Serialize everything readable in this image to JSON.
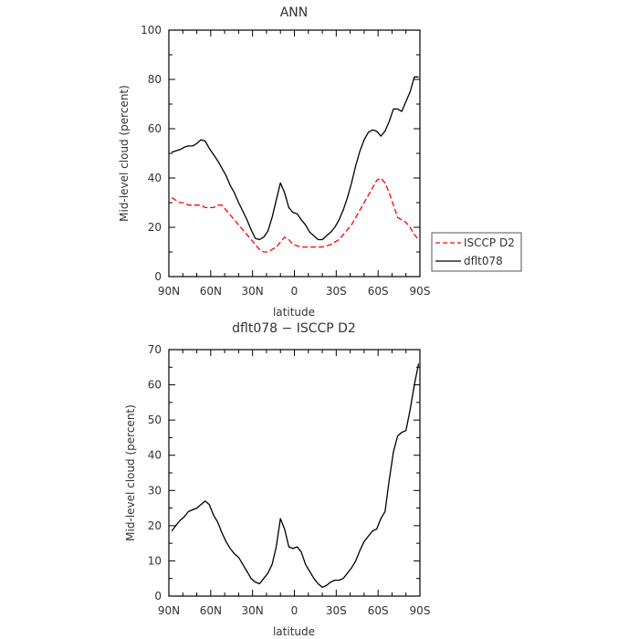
{
  "chart_data": [
    {
      "type": "line",
      "title": "ANN",
      "xlabel": "latitude",
      "ylabel": "Mid-level cloud (percent)",
      "xlim": [
        90,
        -90
      ],
      "ylim": [
        0,
        100
      ],
      "xticks": [
        90,
        60,
        30,
        0,
        -30,
        -60,
        -90
      ],
      "xtick_labels": [
        "90N",
        "60N",
        "30N",
        "0",
        "30S",
        "60S",
        "90S"
      ],
      "yticks": [
        0,
        20,
        40,
        60,
        80,
        100
      ],
      "ytick_labels": [
        "0",
        "20",
        "40",
        "60",
        "80",
        "100"
      ],
      "grid": false,
      "legend": {
        "placement": "right-outside-bottom"
      },
      "series": [
        {
          "name": "ISCCP D2",
          "color": "#ff0000",
          "dash": "dashed",
          "x": [
            88,
            85,
            82,
            79,
            76,
            73,
            70,
            67,
            64,
            61,
            58,
            55,
            52,
            49,
            46,
            43,
            40,
            37,
            34,
            31,
            28,
            25,
            22,
            19,
            16,
            13,
            10,
            7,
            4,
            1,
            -2,
            -5,
            -8,
            -11,
            -14,
            -17,
            -20,
            -23,
            -26,
            -29,
            -32,
            -35,
            -38,
            -41,
            -44,
            -47,
            -50,
            -53,
            -56,
            -59,
            -62,
            -65,
            -68,
            -71,
            -74,
            -77,
            -80,
            -83,
            -86,
            -89
          ],
          "y": [
            32,
            31,
            30,
            30,
            29,
            29,
            29,
            29,
            28,
            28,
            28,
            29,
            29,
            27,
            25,
            23,
            21,
            19,
            17,
            15,
            13,
            11,
            10,
            10,
            11,
            12,
            14,
            16,
            15,
            13,
            12.5,
            12,
            12,
            12,
            12,
            12,
            12,
            12.5,
            13,
            14,
            15,
            17,
            19,
            21,
            24,
            27,
            30,
            33,
            36,
            39,
            40,
            38,
            34,
            29,
            24,
            23,
            22,
            20,
            17,
            15
          ]
        },
        {
          "name": "dflt078",
          "color": "#000000",
          "dash": "solid",
          "x": [
            88,
            85,
            82,
            79,
            76,
            73,
            70,
            67,
            64,
            61,
            58,
            55,
            52,
            49,
            46,
            43,
            40,
            37,
            34,
            31,
            28,
            25,
            22,
            19,
            16,
            13,
            10,
            7,
            4,
            1,
            -2,
            -5,
            -8,
            -11,
            -14,
            -17,
            -20,
            -23,
            -26,
            -29,
            -32,
            -35,
            -38,
            -41,
            -44,
            -47,
            -50,
            -53,
            -56,
            -59,
            -62,
            -65,
            -68,
            -71,
            -74,
            -77,
            -80,
            -83,
            -86,
            -89
          ],
          "y": [
            50.5,
            51,
            51.5,
            52.5,
            53,
            53,
            54,
            55.5,
            55,
            52,
            49.5,
            47,
            44,
            41,
            37,
            34,
            30,
            26.5,
            23,
            19,
            15.5,
            15,
            16,
            18.5,
            24,
            31,
            38,
            34,
            28,
            26,
            25.5,
            23,
            21,
            18,
            16.5,
            15,
            15,
            16.5,
            18,
            20,
            23,
            27,
            32,
            38,
            45,
            51,
            55.5,
            58.5,
            59.5,
            59,
            57,
            59,
            63,
            68,
            68,
            67,
            71,
            75,
            81,
            81
          ]
        }
      ]
    },
    {
      "type": "line",
      "title": "dflt078 − ISCCP D2",
      "xlabel": "latitude",
      "ylabel": "Mid-level cloud (percent)",
      "xlim": [
        90,
        -90
      ],
      "ylim": [
        0,
        70
      ],
      "xticks": [
        90,
        60,
        30,
        0,
        -30,
        -60,
        -90
      ],
      "xtick_labels": [
        "90N",
        "60N",
        "30N",
        "0",
        "30S",
        "60S",
        "90S"
      ],
      "yticks": [
        0,
        10,
        20,
        30,
        40,
        50,
        60,
        70
      ],
      "ytick_labels": [
        "0",
        "10",
        "20",
        "30",
        "40",
        "50",
        "60",
        "70"
      ],
      "grid": false,
      "series": [
        {
          "color": "#000000",
          "dash": "solid",
          "x": [
            88,
            85,
            82,
            79,
            76,
            73,
            70,
            67,
            64,
            61,
            58,
            55,
            52,
            49,
            46,
            43,
            40,
            37,
            34,
            31,
            28,
            25,
            22,
            19,
            16,
            13,
            10,
            7,
            4,
            1,
            -2,
            -5,
            -8,
            -11,
            -14,
            -17,
            -20,
            -23,
            -26,
            -29,
            -32,
            -35,
            -38,
            -41,
            -44,
            -47,
            -50,
            -53,
            -56,
            -59,
            -62,
            -65,
            -68,
            -71,
            -74,
            -77,
            -80,
            -83,
            -86,
            -89
          ],
          "y": [
            18.5,
            20,
            21.5,
            22.5,
            24,
            24.5,
            25,
            26,
            27,
            26,
            23,
            21,
            18,
            15.5,
            13.5,
            12,
            11,
            9,
            7,
            5,
            4,
            3.5,
            5,
            6.5,
            9,
            14,
            22,
            19,
            14,
            13.5,
            14,
            12.5,
            9,
            7,
            5,
            3.5,
            2.5,
            3,
            4,
            4.5,
            4.5,
            5,
            6.5,
            8,
            10,
            13,
            15.5,
            17,
            18.5,
            19,
            22,
            24,
            33,
            41,
            45.5,
            46.5,
            47,
            53,
            60,
            66
          ]
        }
      ]
    }
  ]
}
